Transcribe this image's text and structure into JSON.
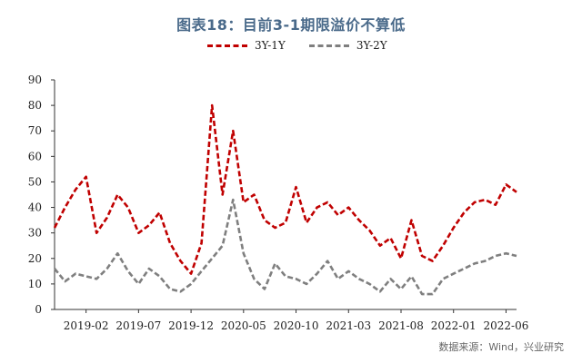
{
  "chart_data": {
    "type": "line",
    "title": "图表18：目前3-1期限溢价不算低",
    "xlabel": "",
    "ylabel": "",
    "ylim": [
      0,
      90
    ],
    "yticks": [
      0,
      10,
      20,
      30,
      40,
      50,
      60,
      70,
      80,
      90
    ],
    "xlim": [
      "2018-11",
      "2022-07"
    ],
    "x_tick_labels": [
      "2019-02",
      "2019-07",
      "2019-12",
      "2020-05",
      "2020-10",
      "2021-03",
      "2021-08",
      "2022-01",
      "2022-06"
    ],
    "legend_position": "top-center",
    "grid": false,
    "x": [
      "2018-11",
      "2018-12",
      "2019-01",
      "2019-02",
      "2019-03",
      "2019-04",
      "2019-05",
      "2019-06",
      "2019-07",
      "2019-08",
      "2019-09",
      "2019-10",
      "2019-11",
      "2019-12",
      "2020-01",
      "2020-02",
      "2020-03",
      "2020-04",
      "2020-05",
      "2020-06",
      "2020-07",
      "2020-08",
      "2020-09",
      "2020-10",
      "2020-11",
      "2020-12",
      "2021-01",
      "2021-02",
      "2021-03",
      "2021-04",
      "2021-05",
      "2021-06",
      "2021-07",
      "2021-08",
      "2021-09",
      "2021-10",
      "2021-11",
      "2021-12",
      "2022-01",
      "2022-02",
      "2022-03",
      "2022-04",
      "2022-05",
      "2022-06",
      "2022-07"
    ],
    "series": [
      {
        "name": "3Y-1Y",
        "color": "#c00000",
        "values": [
          32,
          40,
          47,
          52,
          30,
          36,
          45,
          40,
          30,
          33,
          38,
          26,
          19,
          14,
          26,
          80,
          45,
          70,
          42,
          45,
          35,
          32,
          34,
          48,
          34,
          40,
          42,
          37,
          40,
          35,
          31,
          25,
          28,
          20,
          35,
          21,
          19,
          25,
          32,
          38,
          42,
          43,
          41,
          49,
          46
        ]
      },
      {
        "name": "3Y-2Y",
        "color": "#7f7f7f",
        "values": [
          16,
          11,
          14,
          13,
          12,
          16,
          22,
          15,
          10,
          16,
          13,
          8,
          7,
          10,
          15,
          20,
          25,
          43,
          22,
          12,
          8,
          18,
          13,
          12,
          10,
          14,
          19,
          12,
          15,
          12,
          10,
          7,
          12,
          8,
          13,
          6,
          6,
          12,
          14,
          16,
          18,
          19,
          21,
          22,
          21
        ]
      }
    ]
  },
  "source": "数据来源：Wind，兴业研究"
}
